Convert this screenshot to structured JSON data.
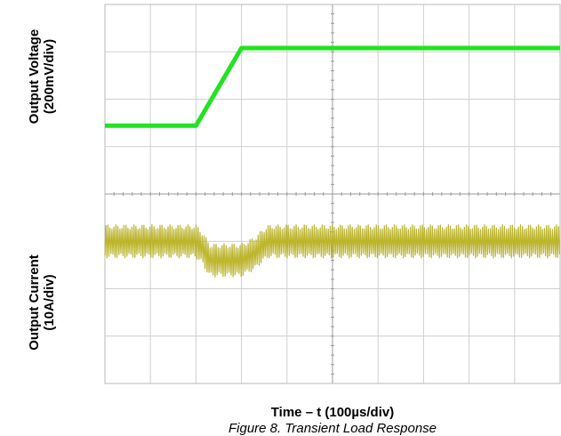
{
  "chart_data": {
    "type": "line",
    "title": "",
    "caption": "Figure 8. Transient Load Response",
    "xlabel": "Time – t (100µs/div)",
    "ylabel_top": [
      "Output Voltage",
      "(200mV/div)"
    ],
    "ylabel_bottom": [
      "Output Current",
      "(10A/div)"
    ],
    "divisions": {
      "x": 10,
      "y": 8
    },
    "grid": true,
    "xlim": [
      0,
      1000
    ],
    "x_unit": "µs",
    "series": [
      {
        "color": "#b5ac18",
        "x": [
          0,
          200,
          215,
          230,
          300,
          330,
          345,
          360,
          1000
        ],
        "y": [
          3.0,
          3.0,
          2.85,
          2.6,
          2.6,
          2.75,
          2.9,
          3.0,
          3.0
        ]
      },
      {
        "color": "#22e322",
        "x": [
          0,
          200,
          300,
          1000
        ],
        "y": [
          5.44,
          5.44,
          7.08,
          7.08
        ]
      }
    ]
  }
}
